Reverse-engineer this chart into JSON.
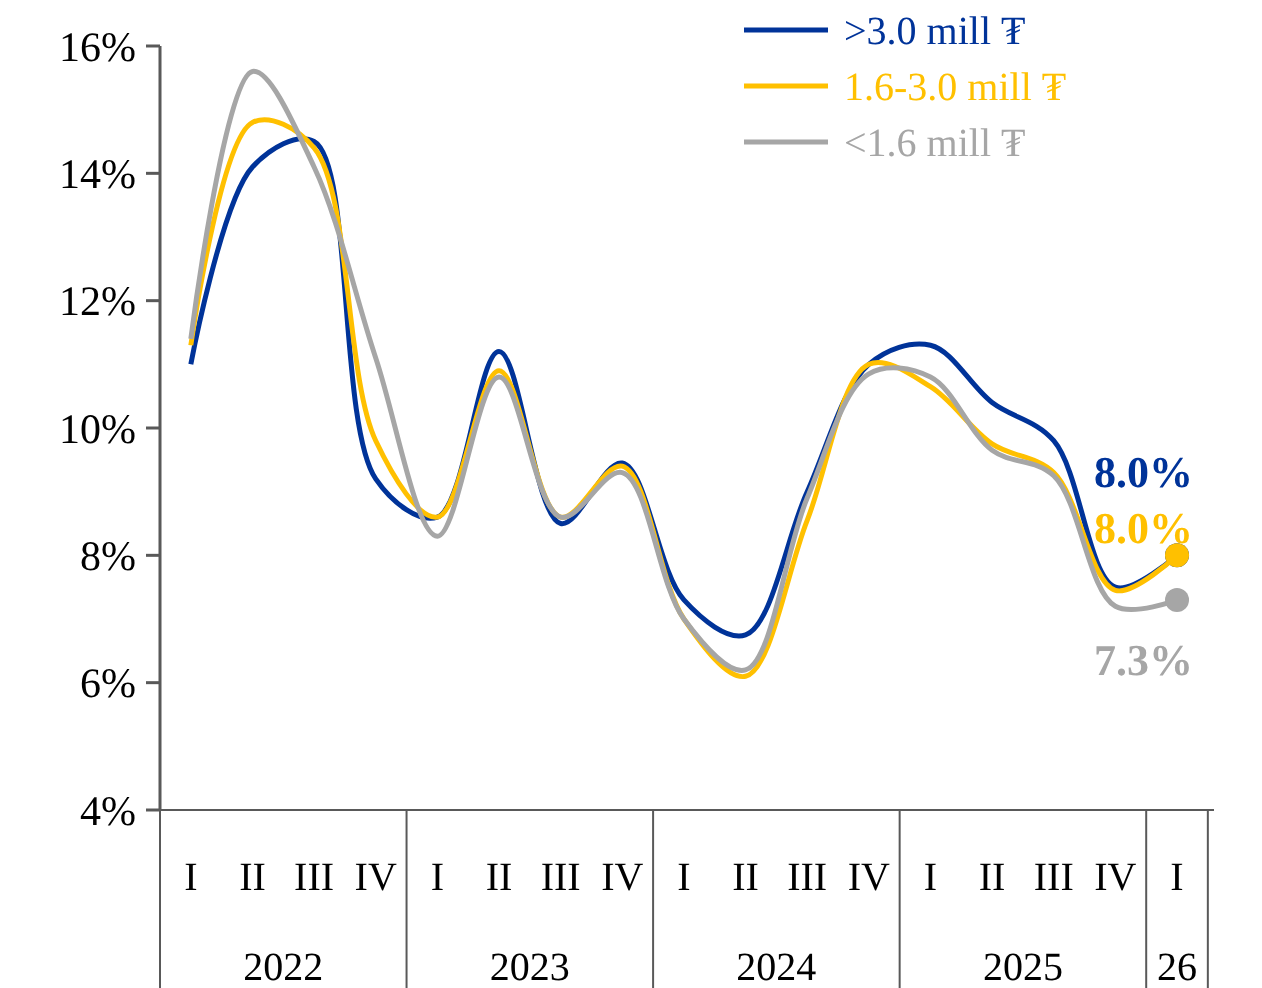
{
  "chart_data": {
    "type": "line",
    "categories": [
      "I",
      "II",
      "III",
      "IV",
      "I",
      "II",
      "III",
      "IV",
      "I",
      "II",
      "III",
      "IV",
      "I",
      "II",
      "III",
      "IV",
      "I"
    ],
    "annotations": [
      "2022",
      "2023",
      "2024",
      "2025",
      "26"
    ],
    "ylim": [
      4,
      16
    ],
    "yticks": [
      {
        "value": 4,
        "label": "4%"
      },
      {
        "value": 6,
        "label": "6%"
      },
      {
        "value": 8,
        "label": "8%"
      },
      {
        "value": 10,
        "label": "10%"
      },
      {
        "value": 12,
        "label": "12%"
      },
      {
        "value": 14,
        "label": "14%"
      },
      {
        "value": 16,
        "label": "16%"
      }
    ],
    "legend": "top right",
    "grid": false,
    "line_style": "solid",
    "series": [
      {
        "name": ">3.0 mill ₮",
        "color": "#003399",
        "values": [
          11.0,
          14.1,
          14.5,
          9.2,
          8.6,
          11.2,
          8.5,
          9.45,
          7.3,
          6.75,
          9.0,
          11.0,
          11.3,
          10.4,
          9.8,
          7.5,
          8.0
        ],
        "value_labels": [
          null,
          null,
          null,
          null,
          null,
          null,
          null,
          null,
          null,
          null,
          null,
          null,
          null,
          null,
          null,
          null,
          "8.0%"
        ]
      },
      {
        "name": "1.6-3.0 mill ₮",
        "color": "#ffc000",
        "values": [
          11.3,
          14.8,
          14.4,
          9.8,
          8.6,
          10.9,
          8.6,
          9.4,
          7.0,
          6.1,
          8.55,
          11.0,
          10.65,
          9.75,
          9.3,
          7.45,
          8.0
        ],
        "value_labels": [
          null,
          null,
          null,
          null,
          null,
          null,
          null,
          null,
          null,
          null,
          null,
          null,
          null,
          null,
          null,
          null,
          "8.0%"
        ]
      },
      {
        "name": "<1.6 mill ₮",
        "color": "#a6a6a6",
        "values": [
          11.4,
          15.6,
          14.1,
          11.1,
          8.3,
          10.8,
          8.6,
          9.3,
          7.0,
          6.2,
          8.9,
          10.85,
          10.8,
          9.65,
          9.25,
          7.2,
          7.3
        ],
        "value_labels": [
          null,
          null,
          null,
          null,
          null,
          null,
          null,
          null,
          null,
          null,
          null,
          null,
          null,
          null,
          null,
          null,
          "7.3%"
        ]
      }
    ]
  }
}
